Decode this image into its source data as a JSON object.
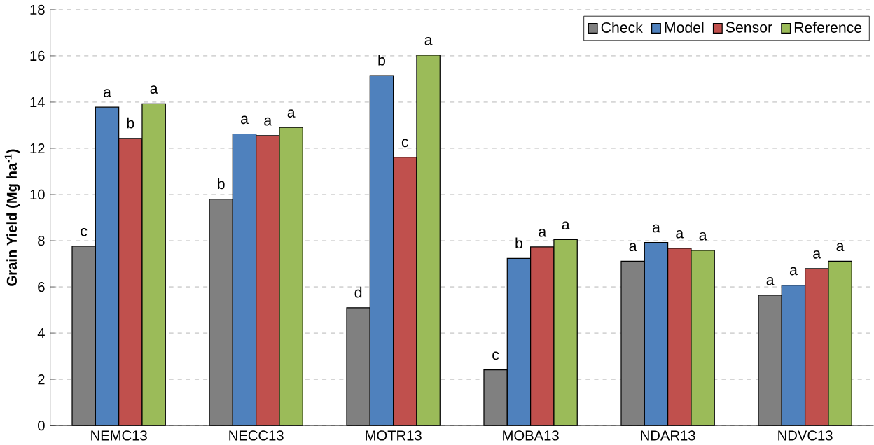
{
  "chart_data": {
    "type": "bar",
    "ylabel": "Grain Yield (Mg ha$^{-1}$)",
    "categories": [
      "NEMC13",
      "NECC13",
      "MOTR13",
      "MOBA13",
      "NDAR13",
      "NDVC13"
    ],
    "series": [
      {
        "name": "Check",
        "color": "#808080",
        "values": [
          7.76,
          9.8,
          5.1,
          2.41,
          7.11,
          5.64
        ],
        "value_labels": [
          "c",
          "b",
          "d",
          "c",
          "a",
          "a"
        ]
      },
      {
        "name": "Model",
        "color": "#4f81bd",
        "values": [
          13.78,
          12.62,
          15.15,
          7.23,
          7.92,
          6.07
        ],
        "value_labels": [
          "a",
          "a",
          "b",
          "b",
          "a",
          "a"
        ]
      },
      {
        "name": "Sensor",
        "color": "#c0504d",
        "values": [
          12.43,
          12.55,
          11.62,
          7.73,
          7.67,
          6.79
        ],
        "value_labels": [
          "b",
          "a",
          "c",
          "a",
          "a",
          "a"
        ]
      },
      {
        "name": "Reference",
        "color": "#9bbb59",
        "values": [
          13.93,
          12.9,
          16.03,
          8.05,
          7.58,
          7.11
        ],
        "value_labels": [
          "a",
          "a",
          "a",
          "a",
          "a",
          "a"
        ]
      }
    ],
    "ylim": [
      0,
      18
    ],
    "yticks": [
      0,
      2,
      4,
      6,
      8,
      10,
      12,
      14,
      16,
      18
    ],
    "grid": "y",
    "legend": "top right"
  }
}
